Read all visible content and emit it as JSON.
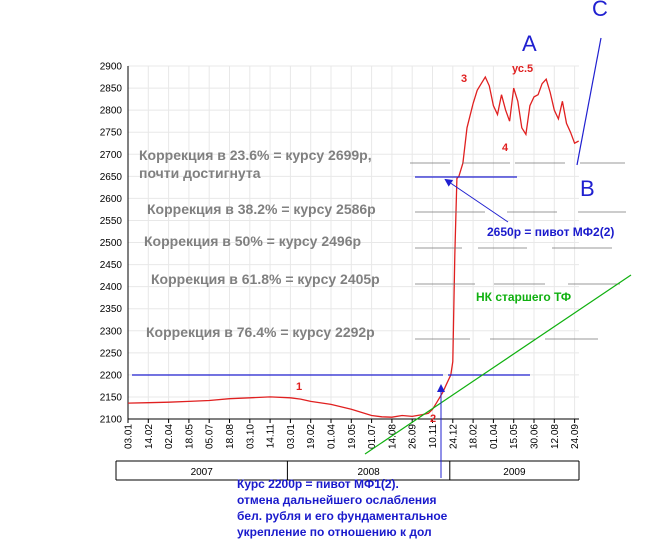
{
  "chart_data": {
    "type": "line",
    "ylim": [
      2100,
      2900
    ],
    "yticks": [
      "2100",
      "2150",
      "2200",
      "2250",
      "2300",
      "2350",
      "2400",
      "2450",
      "2500",
      "2550",
      "2600",
      "2650",
      "2700",
      "2750",
      "2800",
      "2850",
      "2900"
    ],
    "xticks": [
      "03.01",
      "14.02",
      "02.04",
      "18.05",
      "05.07",
      "18.08",
      "03.10",
      "14.11",
      "03.01",
      "19.02",
      "01.04",
      "19.05",
      "01.07",
      "14.08",
      "26.09",
      "10.11",
      "24.12",
      "18.02",
      "01.04",
      "15.05",
      "30.06",
      "12.08",
      "24.09"
    ],
    "years": [
      "2007",
      "2008",
      "2009"
    ],
    "grid": true,
    "series": [
      {
        "color": "#e02020",
        "x": [
          0,
          1,
          2,
          3,
          4,
          5,
          6,
          7,
          8,
          8.5,
          9,
          10,
          11,
          12,
          12.5,
          13,
          13.5,
          14,
          14.5,
          14.8,
          15,
          15.2,
          15.5,
          15.7,
          15.9,
          16,
          16.1,
          16.2,
          16.3,
          16.5,
          16.7,
          17,
          17.2,
          17.4,
          17.6,
          17.8,
          18,
          18.2,
          18.4,
          18.6,
          18.8,
          19,
          19.2,
          19.4,
          19.6,
          19.8,
          20,
          20.2,
          20.4,
          20.6,
          20.8,
          21,
          21.2,
          21.4,
          21.6,
          21.8,
          22,
          22.2
        ],
        "y": [
          2136,
          2137,
          2138,
          2140,
          2142,
          2146,
          2148,
          2150,
          2148,
          2145,
          2140,
          2133,
          2122,
          2108,
          2105,
          2104,
          2108,
          2106,
          2110,
          2113,
          2122,
          2137,
          2160,
          2180,
          2200,
          2230,
          2470,
          2645,
          2650,
          2680,
          2760,
          2815,
          2845,
          2860,
          2875,
          2855,
          2810,
          2790,
          2835,
          2800,
          2775,
          2850,
          2820,
          2760,
          2745,
          2810,
          2830,
          2835,
          2860,
          2870,
          2840,
          2800,
          2780,
          2820,
          2770,
          2750,
          2725,
          2730
        ]
      }
    ]
  },
  "annotations": {
    "corr_236_line1": "Коррекция в 23.6% = курсу 2699р,",
    "corr_236_line2": "почти достигнута",
    "corr_382": "Коррекция в 38.2% = курсу 2586р",
    "corr_50": "Коррекция в 50% = курсу 2496р",
    "corr_618": "Коррекция в 61.8% = курсу 2405р",
    "corr_764": "Коррекция в 76.4% = курсу 2292р",
    "wave_1": "1",
    "wave_2": "2",
    "wave_3": "3",
    "wave_4": "4",
    "wave_us5": "ус.5",
    "wave_A": "A",
    "wave_B": "B",
    "wave_C": "C",
    "pivot_mf2": "2650р = пивот МФ2(2)",
    "nk_tf": "НК старшего ТФ",
    "pivot_mf1_lines": [
      "Курс 2200р = пивот МФ1(2).",
      "отмена дальнейшего ослабления",
      "бел. рубля и его фундаментальное",
      "укрепление по отношению к дол"
    ]
  },
  "colors": {
    "price": "#e02020",
    "blue": "#2020d0",
    "green": "#10b010",
    "grid": "#e8e8e8",
    "gray_text": "#808080"
  }
}
